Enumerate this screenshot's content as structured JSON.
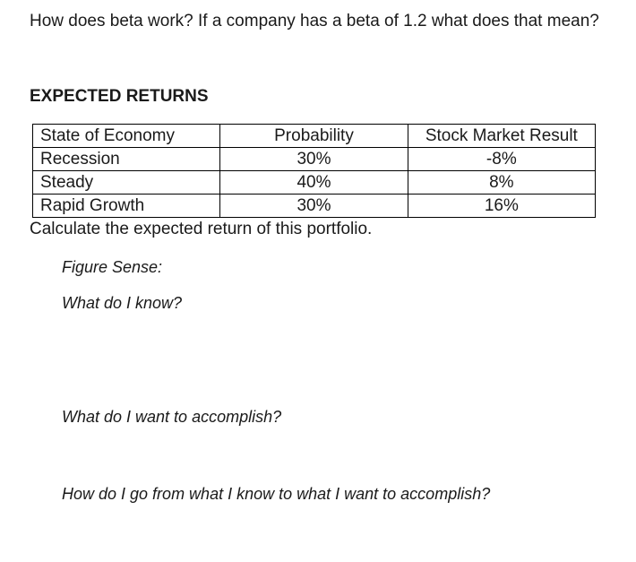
{
  "page": {
    "question": "How does beta work? If a company has a beta of 1.2 what does that mean?",
    "section_title": "EXPECTED RETURNS",
    "table": {
      "headers": [
        "State of Economy",
        "Probability",
        "Stock Market Result"
      ],
      "rows": [
        [
          "Recession",
          "30%",
          "-8%"
        ],
        [
          "Steady",
          "40%",
          "8%"
        ],
        [
          "Rapid Growth",
          "30%",
          "16%"
        ]
      ]
    },
    "instruction": "Calculate the expected return of this portfolio.",
    "prompts": {
      "figure_sense": "Figure Sense:",
      "know": "What do I know?",
      "accomplish": "What do I want to accomplish?",
      "bridge": "How do I go from what I know to what I want to accomplish?"
    },
    "colors": {
      "text": "#1a1a1a",
      "table_border": "#000000",
      "background": "#ffffff"
    }
  }
}
